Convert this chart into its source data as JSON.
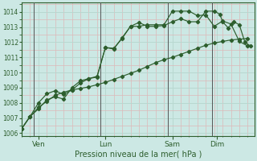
{
  "bg_color": "#cce8e4",
  "grid_major_color": "#b8d8d0",
  "grid_minor_color": "#ddb8b8",
  "line_color": "#2d5e2d",
  "title": "Pression niveau de la mer( hPa )",
  "ylim": [
    1005.8,
    1014.6
  ],
  "yticks": [
    1006,
    1007,
    1008,
    1009,
    1010,
    1011,
    1012,
    1013,
    1014
  ],
  "xlim": [
    0,
    250
  ],
  "xtick_positions": [
    18,
    90,
    162,
    210
  ],
  "xtick_labels": [
    "Ven",
    "Lun",
    "Sam",
    "Dim"
  ],
  "vlines": [
    13,
    85,
    157,
    205
  ],
  "line1_x": [
    0,
    9,
    18,
    27,
    36,
    45,
    54,
    63,
    72,
    81,
    90,
    99,
    108,
    117,
    126,
    135,
    144,
    153,
    162,
    171,
    180,
    189,
    198,
    207,
    216,
    225,
    234,
    243
  ],
  "line1_y": [
    1006.3,
    1007.1,
    1007.7,
    1008.1,
    1008.5,
    1008.7,
    1008.85,
    1008.95,
    1009.05,
    1009.2,
    1009.35,
    1009.55,
    1009.75,
    1009.95,
    1010.15,
    1010.4,
    1010.65,
    1010.85,
    1011.0,
    1011.2,
    1011.4,
    1011.6,
    1011.8,
    1011.95,
    1012.05,
    1012.15,
    1012.2,
    1012.25
  ],
  "line2_x": [
    0,
    9,
    18,
    27,
    36,
    45,
    54,
    63,
    72,
    81,
    90,
    99,
    108,
    117,
    126,
    135,
    144,
    153,
    162,
    171,
    180,
    189,
    198,
    207,
    213,
    216,
    222,
    228,
    234,
    240,
    246
  ],
  "line2_y": [
    1006.3,
    1007.1,
    1008.0,
    1008.6,
    1008.8,
    1008.55,
    1008.85,
    1009.3,
    1009.6,
    1009.7,
    1011.65,
    1011.6,
    1012.25,
    1013.05,
    1013.3,
    1013.05,
    1013.05,
    1013.1,
    1013.35,
    1013.55,
    1013.35,
    1013.35,
    1014.05,
    1014.05,
    1013.85,
    1013.35,
    1012.95,
    1013.35,
    1013.15,
    1012.0,
    1011.75
  ],
  "line3_x": [
    0,
    9,
    18,
    27,
    36,
    45,
    54,
    63,
    72,
    81,
    90,
    99,
    108,
    117,
    126,
    135,
    144,
    153,
    162,
    171,
    180,
    189,
    198,
    207,
    216,
    225,
    234,
    243
  ],
  "line3_y": [
    1006.3,
    1007.1,
    1007.6,
    1008.2,
    1008.4,
    1008.25,
    1009.0,
    1009.45,
    1009.6,
    1009.75,
    1011.65,
    1011.55,
    1012.3,
    1013.05,
    1013.05,
    1013.15,
    1013.15,
    1013.15,
    1014.05,
    1014.05,
    1014.05,
    1013.75,
    1013.8,
    1013.05,
    1013.4,
    1013.2,
    1012.05,
    1011.75
  ]
}
